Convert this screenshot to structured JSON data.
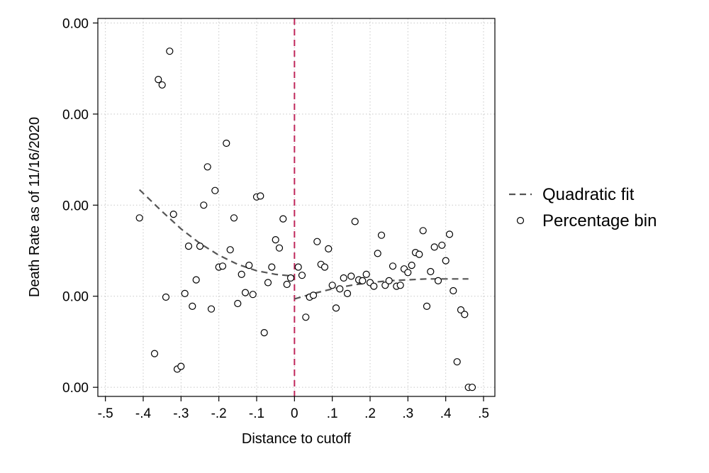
{
  "chart_data": {
    "type": "scatter",
    "xlabel": "Distance to cutoff",
    "ylabel": "Death Rate as of 11/16/2020",
    "x_ticks": [
      {
        "value": -0.5,
        "label": "-.5"
      },
      {
        "value": -0.4,
        "label": "-.4"
      },
      {
        "value": -0.3,
        "label": "-.3"
      },
      {
        "value": -0.2,
        "label": "-.2"
      },
      {
        "value": -0.1,
        "label": "-.1"
      },
      {
        "value": 0,
        "label": "0"
      },
      {
        "value": 0.1,
        "label": ".1"
      },
      {
        "value": 0.2,
        "label": ".2"
      },
      {
        "value": 0.3,
        "label": ".3"
      },
      {
        "value": 0.4,
        "label": ".4"
      },
      {
        "value": 0.5,
        "label": ".5"
      }
    ],
    "y_ticks": [
      {
        "value": 0,
        "label": "0.00"
      },
      {
        "value": 1,
        "label": "0.00"
      },
      {
        "value": 2,
        "label": "0.00"
      },
      {
        "value": 3,
        "label": "0.00"
      },
      {
        "value": 4,
        "label": "0.00"
      }
    ],
    "xlim": [
      -0.52,
      0.53
    ],
    "ylim": [
      -0.1,
      4.05
    ],
    "grid": true,
    "legend_position": "right",
    "cutoff_x": 0,
    "colors": {
      "cutoff": "#c0275b",
      "fit": "#555555",
      "points": "#000000",
      "grid": "#c8c8c8"
    },
    "series": [
      {
        "name": "Quadratic fit",
        "style": "dashed-line",
        "segments": [
          {
            "x": [
              -0.41,
              -0.35,
              -0.3,
              -0.25,
              -0.2,
              -0.15,
              -0.1,
              -0.05,
              0
            ],
            "y": [
              2.17,
              1.93,
              1.74,
              1.58,
              1.45,
              1.35,
              1.28,
              1.24,
              1.22
            ]
          },
          {
            "x": [
              0,
              0.05,
              0.1,
              0.15,
              0.2,
              0.25,
              0.3,
              0.35,
              0.4,
              0.46
            ],
            "y": [
              0.97,
              1.03,
              1.08,
              1.12,
              1.15,
              1.17,
              1.18,
              1.19,
              1.19,
              1.19
            ]
          }
        ]
      },
      {
        "name": "Percentage bin",
        "style": "hollow-circle",
        "points": [
          [
            -0.41,
            1.86
          ],
          [
            -0.37,
            0.37
          ],
          [
            -0.36,
            3.38
          ],
          [
            -0.35,
            3.32
          ],
          [
            -0.34,
            0.99
          ],
          [
            -0.33,
            3.69
          ],
          [
            -0.32,
            1.9
          ],
          [
            -0.31,
            0.2
          ],
          [
            -0.3,
            0.23
          ],
          [
            -0.29,
            1.03
          ],
          [
            -0.28,
            1.55
          ],
          [
            -0.27,
            0.89
          ],
          [
            -0.26,
            1.18
          ],
          [
            -0.25,
            1.55
          ],
          [
            -0.24,
            2.0
          ],
          [
            -0.23,
            2.42
          ],
          [
            -0.22,
            0.86
          ],
          [
            -0.21,
            2.16
          ],
          [
            -0.2,
            1.32
          ],
          [
            -0.19,
            1.33
          ],
          [
            -0.18,
            2.68
          ],
          [
            -0.17,
            1.51
          ],
          [
            -0.16,
            1.86
          ],
          [
            -0.15,
            0.92
          ],
          [
            -0.14,
            1.24
          ],
          [
            -0.13,
            1.04
          ],
          [
            -0.12,
            1.34
          ],
          [
            -0.11,
            1.02
          ],
          [
            -0.1,
            2.09
          ],
          [
            -0.09,
            2.1
          ],
          [
            -0.08,
            0.6
          ],
          [
            -0.07,
            1.15
          ],
          [
            -0.06,
            1.32
          ],
          [
            -0.05,
            1.62
          ],
          [
            -0.04,
            1.53
          ],
          [
            -0.03,
            1.85
          ],
          [
            -0.02,
            1.13
          ],
          [
            -0.01,
            1.2
          ],
          [
            0.01,
            1.32
          ],
          [
            0.02,
            1.23
          ],
          [
            0.03,
            0.77
          ],
          [
            0.04,
            0.99
          ],
          [
            0.05,
            1.01
          ],
          [
            0.06,
            1.6
          ],
          [
            0.07,
            1.35
          ],
          [
            0.08,
            1.32
          ],
          [
            0.09,
            1.52
          ],
          [
            0.1,
            1.12
          ],
          [
            0.11,
            0.87
          ],
          [
            0.12,
            1.08
          ],
          [
            0.13,
            1.2
          ],
          [
            0.14,
            1.03
          ],
          [
            0.15,
            1.22
          ],
          [
            0.16,
            1.82
          ],
          [
            0.17,
            1.18
          ],
          [
            0.18,
            1.17
          ],
          [
            0.19,
            1.24
          ],
          [
            0.2,
            1.15
          ],
          [
            0.21,
            1.11
          ],
          [
            0.22,
            1.47
          ],
          [
            0.23,
            1.67
          ],
          [
            0.24,
            1.12
          ],
          [
            0.25,
            1.17
          ],
          [
            0.26,
            1.33
          ],
          [
            0.27,
            1.11
          ],
          [
            0.28,
            1.12
          ],
          [
            0.29,
            1.3
          ],
          [
            0.3,
            1.26
          ],
          [
            0.31,
            1.34
          ],
          [
            0.32,
            1.48
          ],
          [
            0.33,
            1.46
          ],
          [
            0.34,
            1.72
          ],
          [
            0.35,
            0.89
          ],
          [
            0.36,
            1.27
          ],
          [
            0.37,
            1.54
          ],
          [
            0.38,
            1.17
          ],
          [
            0.39,
            1.56
          ],
          [
            0.4,
            1.39
          ],
          [
            0.41,
            1.68
          ],
          [
            0.42,
            1.06
          ],
          [
            0.43,
            0.28
          ],
          [
            0.44,
            0.85
          ],
          [
            0.45,
            0.8
          ],
          [
            0.46,
            0.0
          ],
          [
            0.47,
            0.0
          ]
        ]
      }
    ]
  }
}
